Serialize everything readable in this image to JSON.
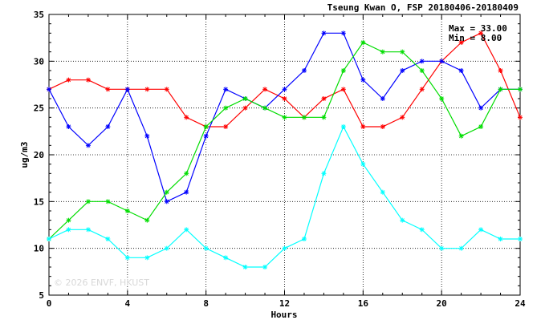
{
  "chart_data": {
    "type": "line",
    "title": "Tseung Kwan O, FSP 20180406-20180409",
    "xlabel": "Hours",
    "ylabel": "ug/m3",
    "xlim": [
      0,
      24
    ],
    "ylim": [
      5,
      35
    ],
    "xticks": [
      0,
      4,
      8,
      12,
      16,
      20,
      24
    ],
    "yticks": [
      5,
      10,
      15,
      20,
      25,
      30,
      35
    ],
    "grid": true,
    "stats": {
      "max_label": "Max = 33.00",
      "min_label": "Min = 8.00"
    },
    "watermark": "© 2026 ENVF, HKUST",
    "x": [
      0,
      1,
      2,
      3,
      4,
      5,
      6,
      7,
      8,
      9,
      10,
      11,
      12,
      13,
      14,
      15,
      16,
      17,
      18,
      19,
      20,
      21,
      22,
      23,
      24
    ],
    "series": [
      {
        "color": "#ff0000",
        "values": [
          27,
          28,
          28,
          27,
          27,
          27,
          27,
          24,
          23,
          23,
          25,
          27,
          26,
          24,
          26,
          27,
          23,
          23,
          24,
          27,
          30,
          32,
          33,
          29,
          24
        ]
      },
      {
        "color": "#0000ff",
        "values": [
          27,
          23,
          21,
          23,
          27,
          22,
          15,
          16,
          22,
          27,
          26,
          25,
          27,
          29,
          33,
          33,
          28,
          26,
          29,
          30,
          30,
          29,
          25,
          27,
          27
        ]
      },
      {
        "color": "#00dd00",
        "values": [
          11,
          13,
          15,
          15,
          14,
          13,
          16,
          18,
          23,
          25,
          26,
          25,
          24,
          24,
          24,
          29,
          32,
          31,
          31,
          29,
          26,
          22,
          23,
          27,
          27
        ]
      },
      {
        "color": "#00ffff",
        "values": [
          11,
          12,
          12,
          11,
          9,
          9,
          10,
          12,
          10,
          9,
          8,
          8,
          10,
          11,
          18,
          23,
          19,
          16,
          13,
          12,
          10,
          10,
          12,
          11,
          11
        ]
      }
    ]
  }
}
